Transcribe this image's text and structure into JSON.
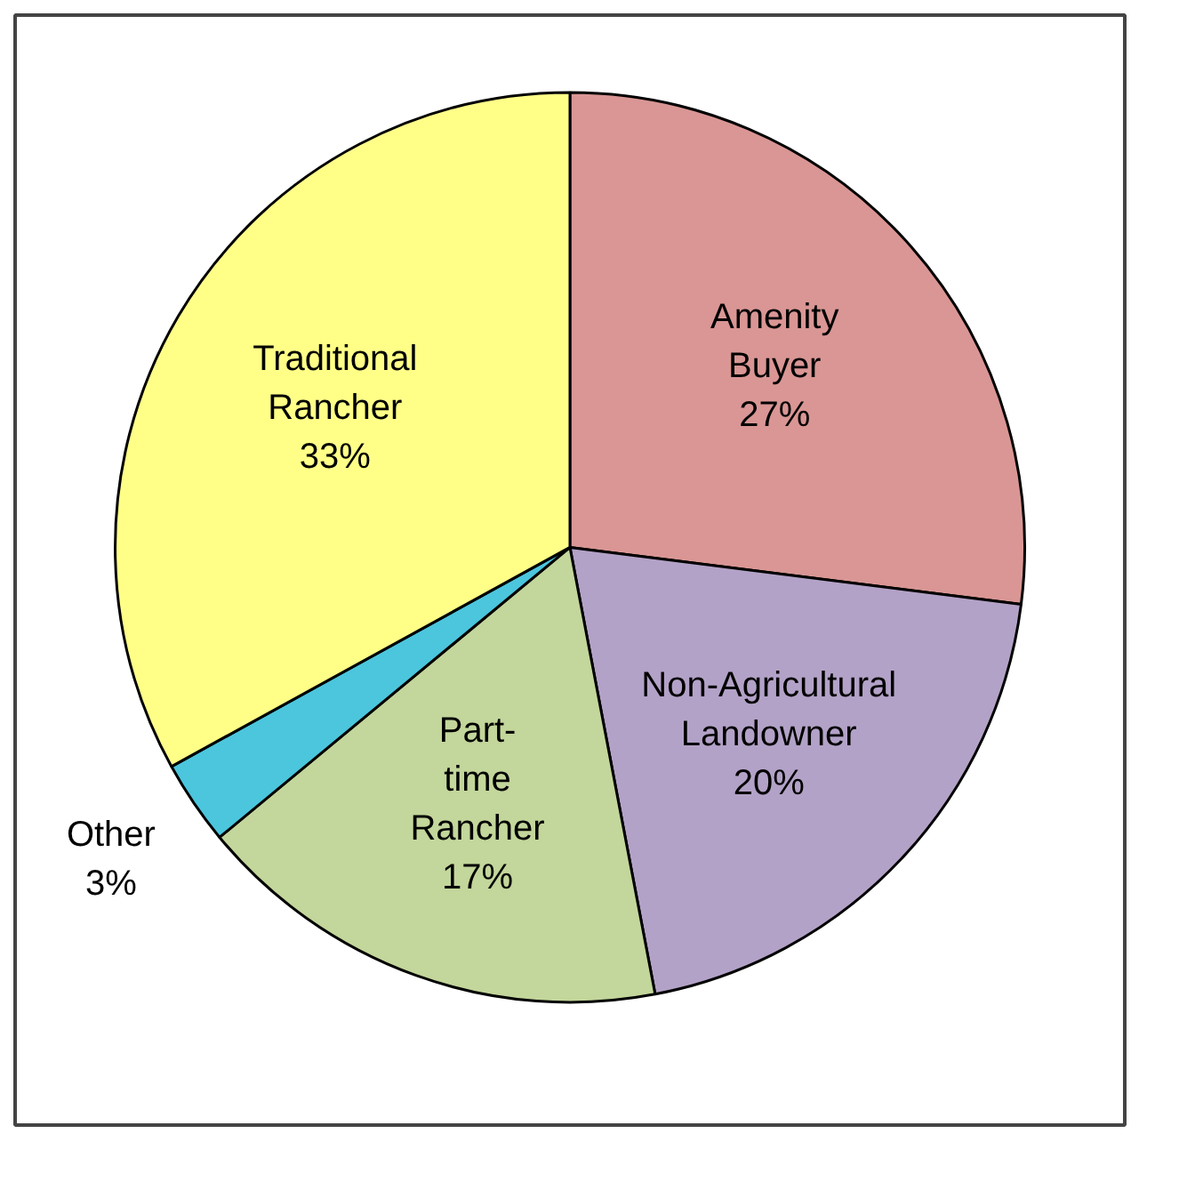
{
  "chart_data": {
    "type": "pie",
    "categories": [
      "Amenity\nBuyer",
      "Non-Agricultural\nLandowner",
      "Part-\ntime\nRancher",
      "Other",
      "Traditional\nRancher"
    ],
    "values": [
      27,
      20,
      17,
      3,
      33
    ],
    "colors": [
      "#d99694",
      "#b3a2c7",
      "#c3d69b",
      "#4bc6dd",
      "#ffff88"
    ],
    "value_labels": [
      "27%",
      "20%",
      "17%",
      "3%",
      "33%"
    ],
    "legend": false
  }
}
